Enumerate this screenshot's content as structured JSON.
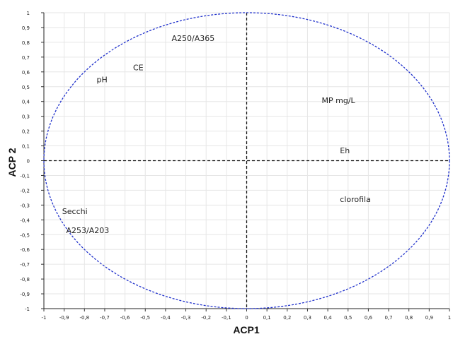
{
  "chart_data": {
    "type": "scatter",
    "xlabel": "ACP1",
    "ylabel": "ACP 2",
    "xlim": [
      -1,
      1
    ],
    "ylim": [
      -1,
      1
    ],
    "grid": true,
    "x_ticks": [
      "-1",
      "-0,9",
      "-0,8",
      "-0,7",
      "-0,6",
      "-0,5",
      "-0,4",
      "-0,3",
      "-0,2",
      "-0,1",
      "0",
      "0,1",
      "0,2",
      "0,3",
      "0,4",
      "0,5",
      "0,6",
      "0,7",
      "0,8",
      "0,9",
      "1"
    ],
    "y_ticks": [
      "1",
      "0,9",
      "0,8",
      "0,7",
      "0,6",
      "0,5",
      "0,4",
      "0,3",
      "0,2",
      "0,1",
      "0",
      "-0,1",
      "-0,2",
      "-0,3",
      "-0,4",
      "-0,5",
      "-0,6",
      "-0,7",
      "-0,8",
      "-0,9",
      "-1"
    ],
    "points": [
      {
        "label": "A250/A365",
        "x": -0.37,
        "y": 0.81
      },
      {
        "label": "CE",
        "x": -0.56,
        "y": 0.61
      },
      {
        "label": "pH",
        "x": -0.74,
        "y": 0.53
      },
      {
        "label": "MP mg/L",
        "x": 0.37,
        "y": 0.39
      },
      {
        "label": "Eh",
        "x": 0.46,
        "y": 0.05
      },
      {
        "label": "clorofila",
        "x": 0.46,
        "y": -0.28
      },
      {
        "label": "Secchi",
        "x": -0.91,
        "y": -0.36
      },
      {
        "label": "A253/A203",
        "x": -0.89,
        "y": -0.49
      }
    ],
    "circle_color": "#2233cc",
    "axis_line_color": "#111111"
  }
}
